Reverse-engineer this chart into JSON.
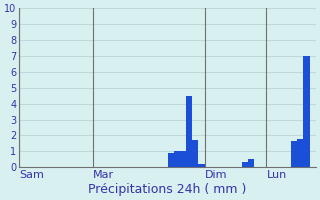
{
  "xlabel": "Précipitations 24h ( mm )",
  "background_color": "#d9f0f0",
  "bar_color": "#1a4fd6",
  "grid_color": "#b8d4d4",
  "vline_color": "#707070",
  "label_color": "#3333aa",
  "ylim": [
    0,
    10
  ],
  "yticks": [
    0,
    1,
    2,
    3,
    4,
    5,
    6,
    7,
    8,
    9,
    10
  ],
  "ytick_fontsize": 7,
  "xlabel_fontsize": 9,
  "xtick_fontsize": 8,
  "n_bars": 48,
  "bars": [
    0,
    0,
    0,
    0,
    0,
    0,
    0,
    0,
    0,
    0,
    0,
    0,
    0,
    0,
    0,
    0,
    0,
    0,
    0,
    0,
    0,
    0,
    0,
    0,
    0.9,
    1.05,
    1.0,
    4.5,
    1.7,
    0.2,
    0,
    0,
    0,
    0,
    0,
    0,
    0.35,
    0.5,
    0,
    0,
    0,
    0,
    0,
    0,
    1.65,
    1.8,
    7.0,
    0
  ],
  "day_label_bars": [
    0,
    12,
    30,
    40
  ],
  "day_labels": [
    "Sam",
    "Mar",
    "Dim",
    "Lun"
  ]
}
